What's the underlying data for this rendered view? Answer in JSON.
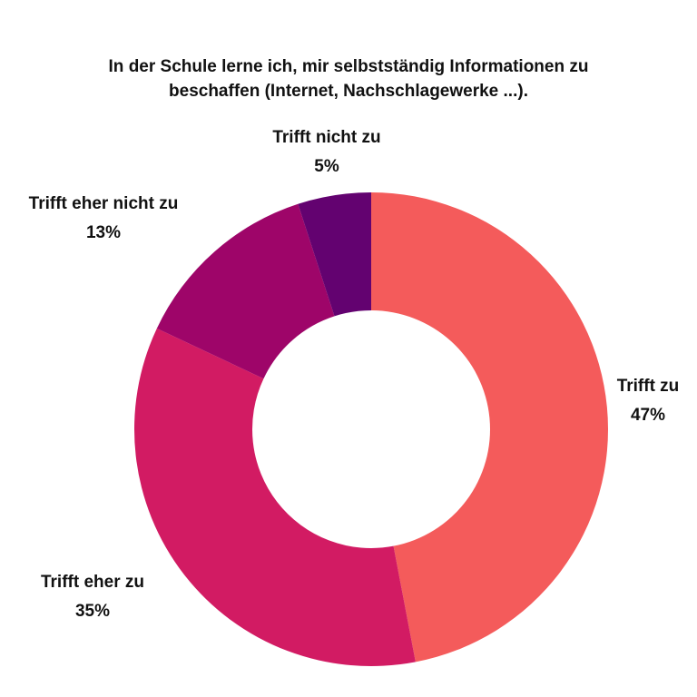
{
  "chart_data": {
    "type": "pie",
    "donut": true,
    "title_lines": [
      "In der Schule lerne ich, mir selbstständig Informationen zu",
      "beschaffen (Internet, Nachschlagewerke ...)."
    ],
    "slices": [
      {
        "label": "Trifft zu",
        "value": 47,
        "value_label": "47%",
        "color": "#f45b5b"
      },
      {
        "label": "Trifft eher zu",
        "value": 35,
        "value_label": "35%",
        "color": "#d21b63"
      },
      {
        "label": "Trifft eher nicht zu",
        "value": 13,
        "value_label": "13%",
        "color": "#9e0569"
      },
      {
        "label": "Trifft nicht zu",
        "value": 5,
        "value_label": "5%",
        "color": "#630270"
      }
    ],
    "legend": "none"
  }
}
